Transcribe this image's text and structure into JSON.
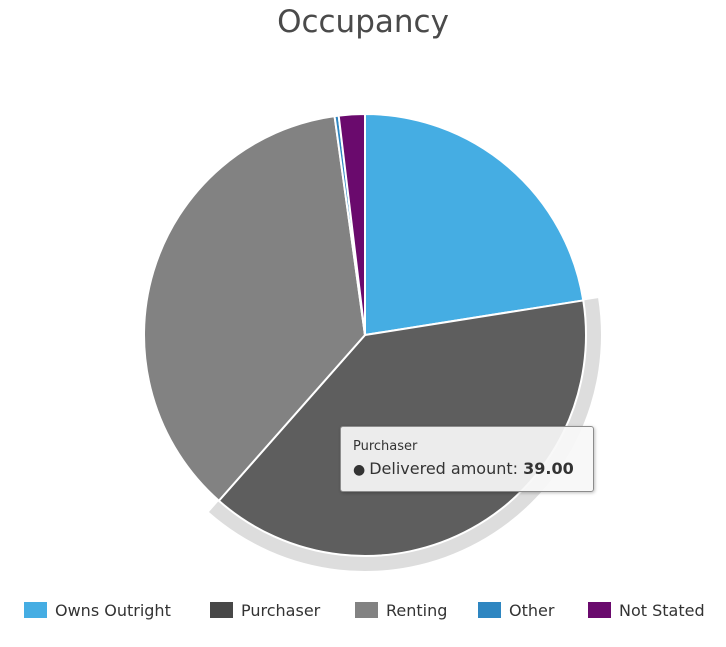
{
  "chart_data": {
    "type": "pie",
    "title": "Occupancy",
    "series": [
      {
        "name": "Delivered amount",
        "categories": [
          "Owns Outright",
          "Purchaser",
          "Renting",
          "Other",
          "Not Stated"
        ],
        "values": [
          22.5,
          39.0,
          36.3,
          0.3,
          1.9
        ]
      }
    ],
    "colors": [
      "#45ade3",
      "#5e5e5e",
      "#828282",
      "#2e86c1",
      "#6a0a6d"
    ],
    "hovered": {
      "category": "Purchaser",
      "label": "Delivered amount",
      "value": "39.00"
    },
    "legend": {
      "position": "bottom",
      "items": [
        {
          "label": "Owns Outright",
          "color": "#45ade3"
        },
        {
          "label": "Purchaser",
          "color": "#474747"
        },
        {
          "label": "Renting",
          "color": "#828282"
        },
        {
          "label": "Other",
          "color": "#2e86c1"
        },
        {
          "label": "Not Stated",
          "color": "#6a0a6d"
        }
      ]
    }
  }
}
